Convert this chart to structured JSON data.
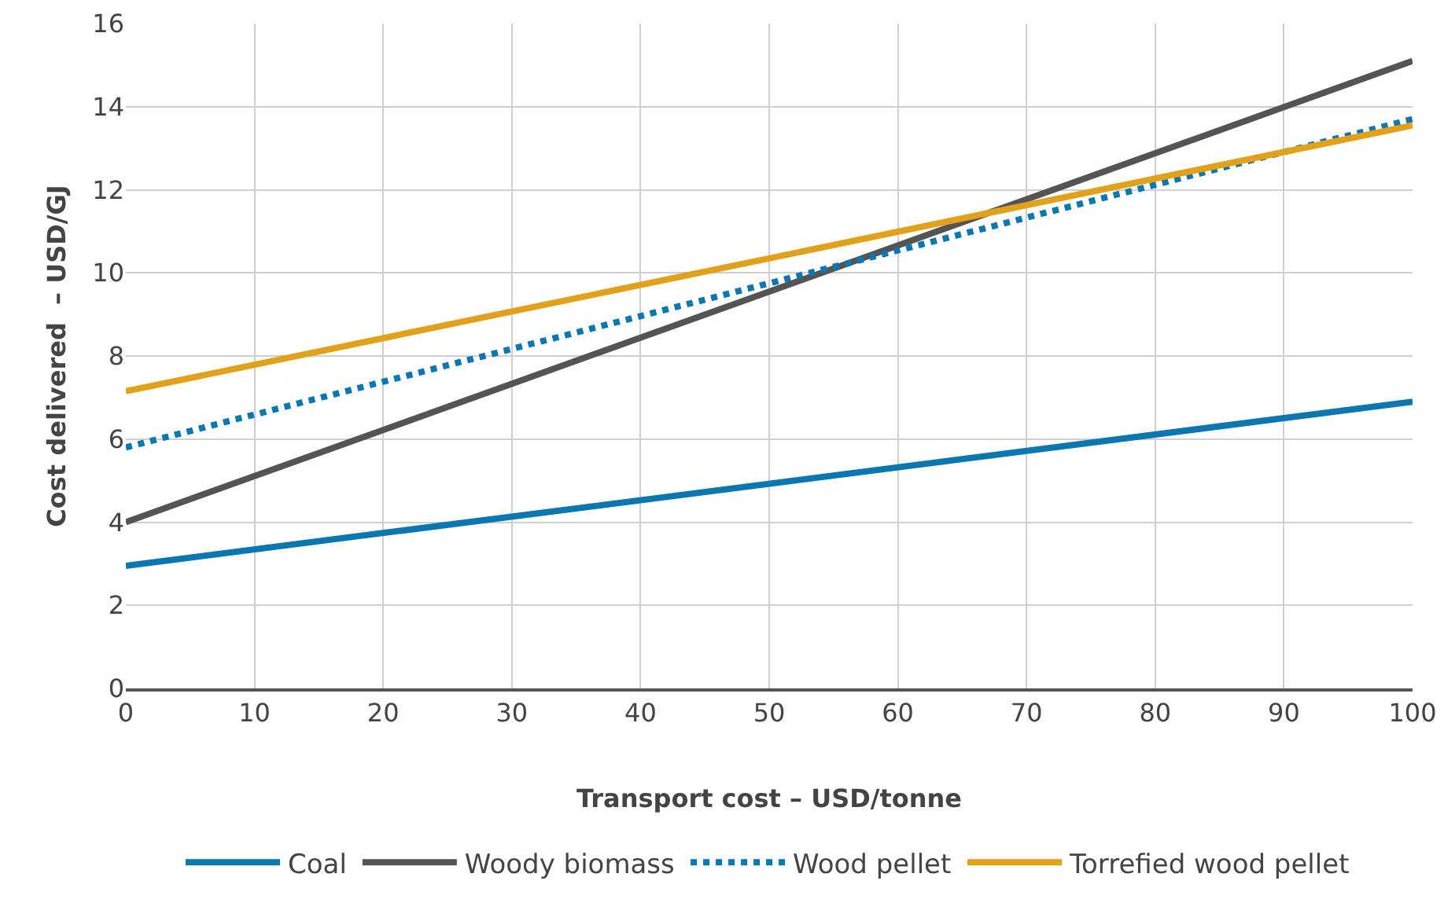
{
  "chart_data": {
    "type": "line",
    "xlabel": "Transport cost – USD/tonne",
    "ylabel": "Cost delivered  – USD/GJ",
    "x": [
      0,
      100
    ],
    "xlim": [
      0,
      100
    ],
    "xticks": [
      0,
      10,
      20,
      30,
      40,
      50,
      60,
      70,
      80,
      90,
      100
    ],
    "ylim": [
      0,
      16
    ],
    "yticks": [
      0,
      2,
      4,
      6,
      8,
      10,
      12,
      14,
      16
    ],
    "grid": true,
    "legend": "bottom",
    "marker": "none",
    "series": [
      {
        "name": "Coal",
        "color": "#0a77b0",
        "values": [
          2.95,
          6.9
        ],
        "line_style": "solid"
      },
      {
        "name": "Woody biomass",
        "color": "#545454",
        "values": [
          4.0,
          15.1
        ],
        "line_style": "solid"
      },
      {
        "name": "Wood pellet",
        "color": "#0a77b0",
        "values": [
          5.8,
          13.7
        ],
        "line_style": "dotted"
      },
      {
        "name": "Torrefied wood pellet",
        "color": "#e2a11b",
        "values": [
          7.15,
          13.55
        ],
        "line_style": "solid"
      }
    ]
  }
}
